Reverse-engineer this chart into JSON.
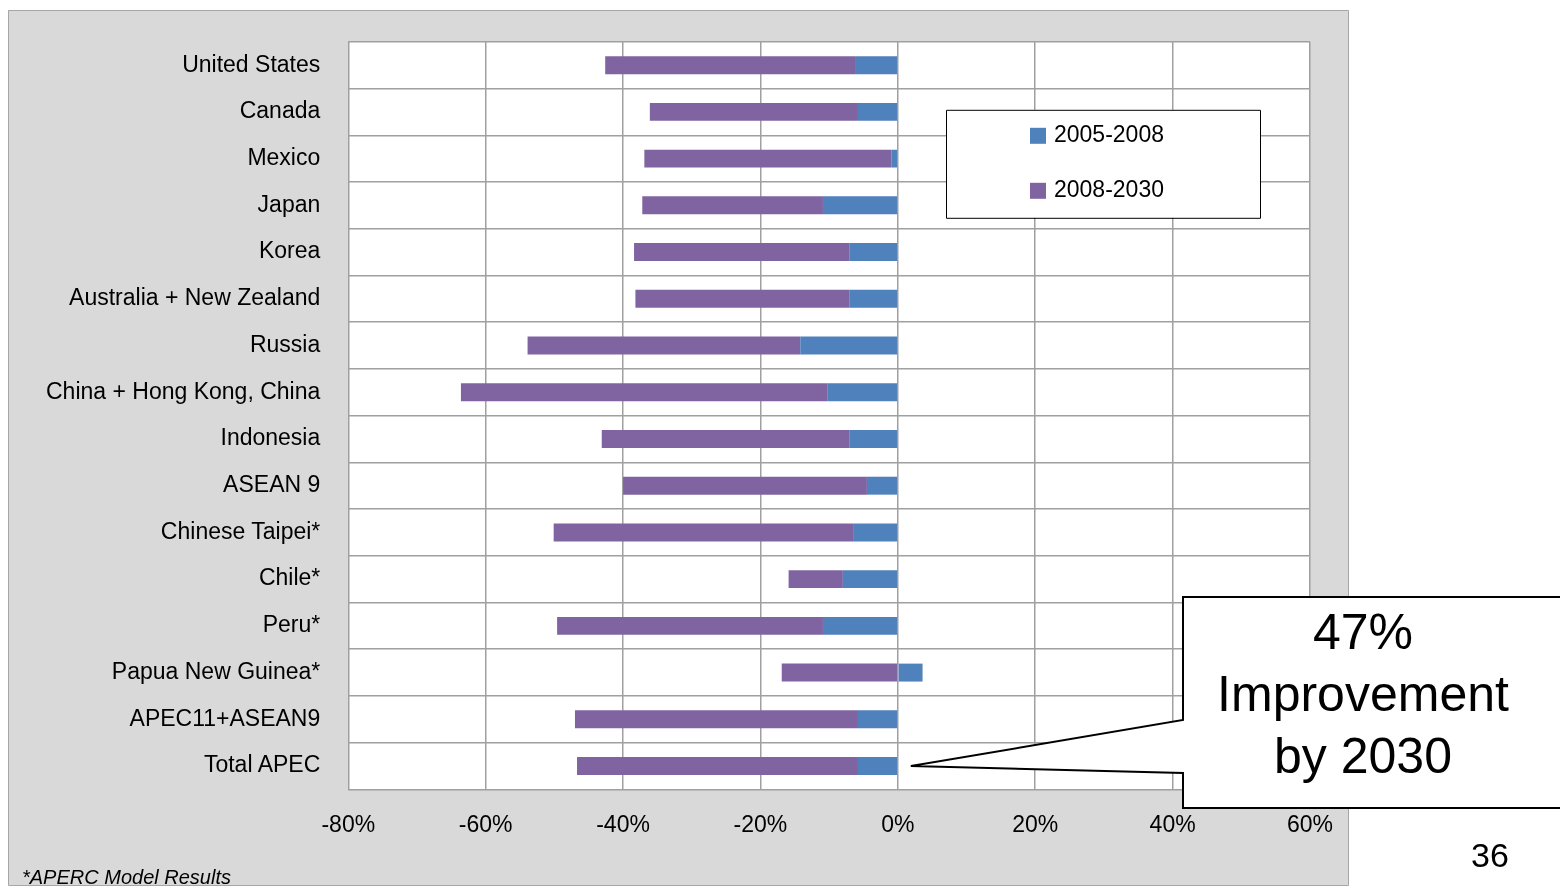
{
  "chart_data": {
    "type": "bar",
    "orientation": "horizontal",
    "stacked": true,
    "categories": [
      "United States",
      "Canada",
      "Mexico",
      "Japan",
      "Korea",
      "Australia + New Zealand",
      "Russia",
      "China + Hong Kong, China",
      "Indonesia",
      "ASEAN 9",
      "Chinese Taipei*",
      "Chile*",
      "Peru*",
      "Papua New Guinea*",
      "APEC11+ASEAN9",
      "Total APEC"
    ],
    "series": [
      {
        "name": "2005-2008",
        "color": "#4f81bd",
        "values": [
          -6.1,
          -5.8,
          -0.9,
          -10.9,
          -7.0,
          -7.0,
          -14.2,
          -10.2,
          -7.0,
          -4.5,
          -6.4,
          -8.0,
          -10.9,
          3.6,
          -5.8,
          -5.8
        ]
      },
      {
        "name": "2008-2030",
        "color": "#8064a2",
        "values": [
          -36.5,
          -30.3,
          -36.0,
          -26.3,
          -31.4,
          -31.2,
          -39.7,
          -53.4,
          -36.1,
          -35.5,
          -43.7,
          -7.9,
          -38.7,
          -16.9,
          -41.2,
          -40.9
        ]
      }
    ],
    "xlim": [
      -80,
      60
    ],
    "xticks": [
      {
        "value": -80,
        "label": "-80%"
      },
      {
        "value": -60,
        "label": "-60%"
      },
      {
        "value": -40,
        "label": "-40%"
      },
      {
        "value": -20,
        "label": "-20%"
      },
      {
        "value": 0,
        "label": "0%"
      },
      {
        "value": 20,
        "label": "20%"
      },
      {
        "value": 40,
        "label": "40%"
      },
      {
        "value": 60,
        "label": "60%"
      }
    ],
    "grid": true,
    "legend": "top right",
    "annotations": [
      "*APERC Model Results",
      "47% Improvement by 2030",
      "36"
    ]
  }
}
